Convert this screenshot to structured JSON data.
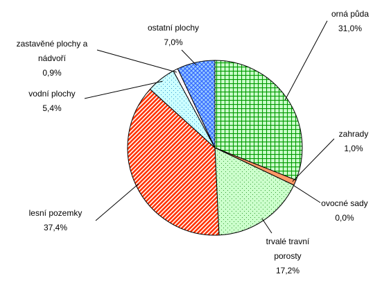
{
  "chart_data": {
    "type": "pie",
    "categories": [
      "orná půda",
      "zahrady",
      "ovocné sady",
      "trvalé travní porosty",
      "lesní pozemky",
      "vodní plochy",
      "zastavěné plochy a nádvoří",
      "ostatní plochy"
    ],
    "values": [
      31.0,
      1.0,
      0.0,
      17.2,
      37.4,
      5.4,
      0.9,
      7.0
    ],
    "value_labels": [
      "31,0%",
      "1,0%",
      "0,0%",
      "17,2%",
      "37,4%",
      "5,4%",
      "0,9%",
      "7,0%"
    ],
    "colors": [
      "#009900",
      "#ff9966",
      "#ffcc66",
      "#ccffcc",
      "#ff3300",
      "#ccffff",
      "#ff99cc",
      "#3366ff"
    ]
  }
}
